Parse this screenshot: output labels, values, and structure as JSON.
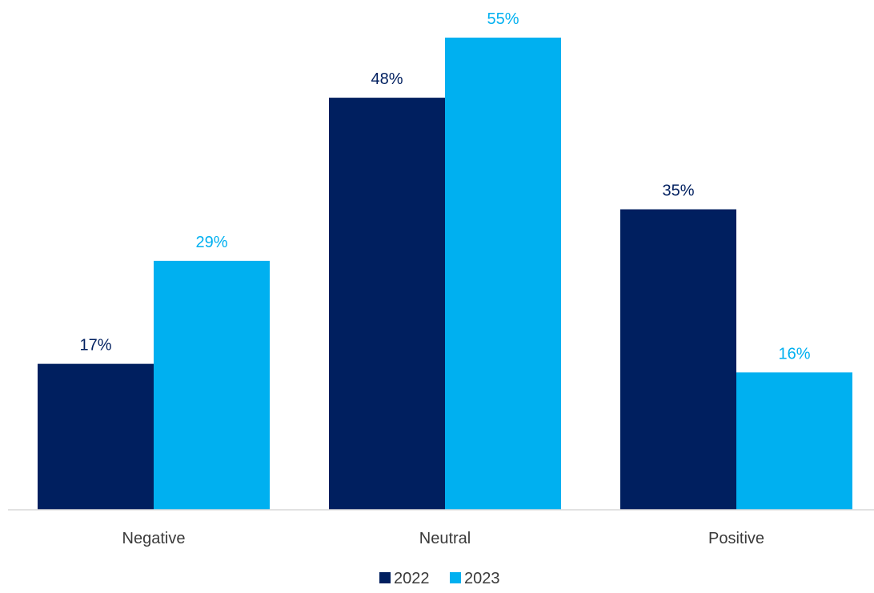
{
  "chart_data": {
    "type": "bar",
    "title": "",
    "xlabel": "",
    "ylabel": "",
    "categories": [
      "Negative",
      "Neutral",
      "Positive"
    ],
    "series": [
      {
        "name": "2022",
        "values": [
          17,
          48,
          35
        ],
        "labels": [
          "17%",
          "48%",
          "35%"
        ],
        "color": "#001f5f"
      },
      {
        "name": "2023",
        "values": [
          29,
          55,
          16
        ],
        "labels": [
          "29%",
          "55%",
          "16%"
        ],
        "color": "#00b0f0"
      }
    ],
    "ylim": [
      0,
      55
    ],
    "grid": false,
    "legend": "bottom-center",
    "colors": {
      "baseline": "#d9d9d9",
      "category_text": "#3a3a3a"
    }
  }
}
